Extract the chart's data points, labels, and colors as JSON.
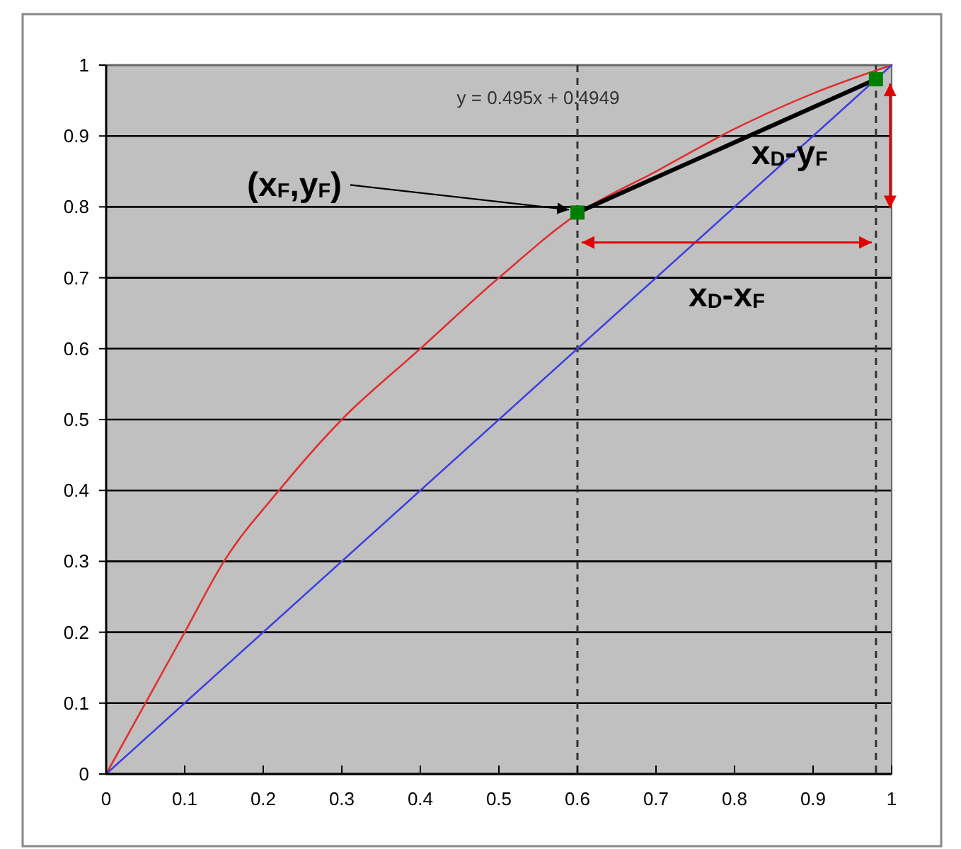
{
  "chart_data": {
    "type": "line",
    "xlim": [
      0,
      1
    ],
    "ylim": [
      0,
      1
    ],
    "xticks": [
      0,
      0.1,
      0.2,
      0.3,
      0.4,
      0.5,
      0.6,
      0.7,
      0.8,
      0.9,
      1
    ],
    "yticks": [
      0,
      0.1,
      0.2,
      0.3,
      0.4,
      0.5,
      0.6,
      0.7,
      0.8,
      0.9,
      1
    ],
    "grid": "y",
    "line_style": "solid",
    "series": [
      {
        "color": "#e03030",
        "x": [
          0,
          0.05,
          0.1,
          0.15,
          0.22,
          0.3,
          0.4,
          0.5,
          0.6,
          0.7,
          0.8,
          0.9,
          1
        ],
        "values": [
          0,
          0.1,
          0.2,
          0.3,
          0.4,
          0.5,
          0.6,
          0.7,
          0.79,
          0.85,
          0.91,
          0.96,
          1
        ]
      },
      {
        "color": "#4040e0",
        "x": [
          0,
          1
        ],
        "values": [
          0,
          1
        ]
      },
      {
        "color": "#000000",
        "x": [
          0.6,
          0.98
        ],
        "values": [
          0.792,
          0.98
        ]
      },
      {
        "type": "scatter",
        "marker": "square",
        "color": "#008000",
        "x": [
          0.6,
          0.98
        ],
        "values": [
          0.792,
          0.98
        ]
      }
    ],
    "ref_lines": [
      {
        "axis": "x",
        "value": 0.6,
        "color": "#333333",
        "line_style": "dashed"
      },
      {
        "axis": "x",
        "value": 0.98,
        "color": "#333333",
        "line_style": "dashed"
      }
    ],
    "annotations": [
      "y = 0.495x + 0.4949",
      {
        "text": "(x$_{F}$,y$_{F}$)",
        "x": 0.6,
        "y": 0.792
      },
      "x$_{D}$-y$_{F}$",
      "x$_{D}$-x$_{F}$"
    ]
  }
}
